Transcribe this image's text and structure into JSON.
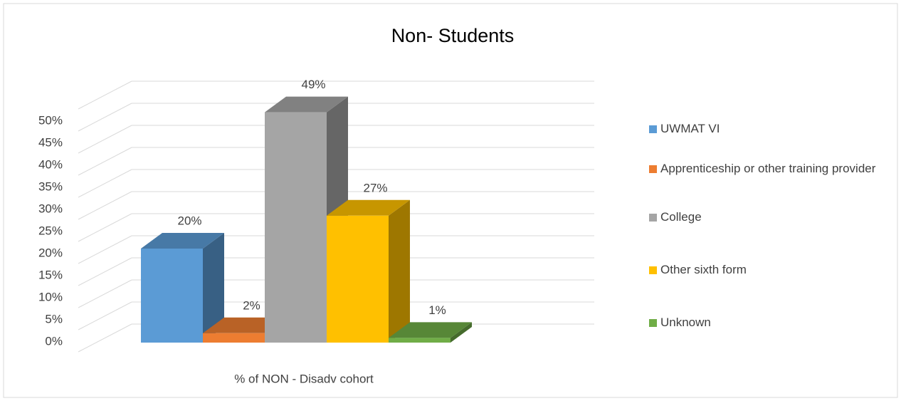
{
  "chart_data": {
    "type": "bar3d",
    "title": "Non- Students",
    "categories": [
      "% of NON - Disadv cohort"
    ],
    "series": [
      {
        "name": "UWMAT VI",
        "color": "#5b9bd5",
        "values": [
          20
        ],
        "value_labels": [
          "20%"
        ]
      },
      {
        "name": "Apprenticeship or other training provider",
        "color": "#ed7d31",
        "values": [
          2
        ],
        "value_labels": [
          "2%"
        ]
      },
      {
        "name": "College",
        "color": "#a5a5a5",
        "values": [
          49
        ],
        "value_labels": [
          "49%"
        ]
      },
      {
        "name": "Other sixth form",
        "color": "#ffc000",
        "values": [
          27
        ],
        "value_labels": [
          "27%"
        ]
      },
      {
        "name": "Unknown",
        "color": "#70ad47",
        "values": [
          1
        ],
        "value_labels": [
          "1%"
        ]
      }
    ],
    "ylim": [
      0,
      55
    ],
    "yticks": [
      {
        "value": 0,
        "label": "0%"
      },
      {
        "value": 5,
        "label": "5%"
      },
      {
        "value": 10,
        "label": "10%"
      },
      {
        "value": 15,
        "label": "15%"
      },
      {
        "value": 20,
        "label": "20%"
      },
      {
        "value": 25,
        "label": "25%"
      },
      {
        "value": 30,
        "label": "30%"
      },
      {
        "value": 35,
        "label": "35%"
      },
      {
        "value": 40,
        "label": "40%"
      },
      {
        "value": 45,
        "label": "45%"
      },
      {
        "value": 50,
        "label": "50%"
      }
    ],
    "grid": true,
    "legend": "right"
  }
}
